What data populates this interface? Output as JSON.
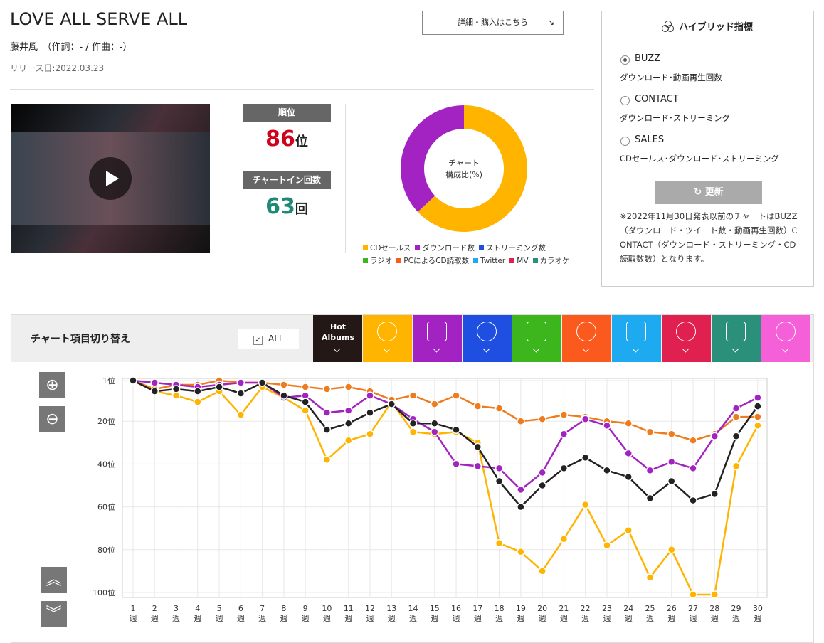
{
  "header": {
    "title": "LOVE ALL SERVE ALL",
    "artist": "藤井風　（作詞：- / 作曲：-）",
    "release": "リリース日:2022.03.23"
  },
  "detail_button": "詳細・購入はこちら",
  "rank": {
    "label": "順位",
    "value": "86",
    "unit": "位"
  },
  "chart_in": {
    "label": "チャートイン回数",
    "value": "63",
    "unit": "回"
  },
  "hybrid": {
    "title": "ハイブリッド指標",
    "selected": 0,
    "options": [
      {
        "name": "BUZZ",
        "desc": "ダウンロード･動画再生回数"
      },
      {
        "name": "CONTACT",
        "desc": "ダウンロード･ストリーミング"
      },
      {
        "name": "SALES",
        "desc": "CDセールス･ダウンロード･ストリーミング"
      }
    ],
    "update": "更新",
    "note": "※2022年11月30日発表以前のチャートはBUZZ（ダウンロード・ツイート数・動画再生回数）CONTACT（ダウンロード・ストリーミング・CD読取数数）となります。"
  },
  "switcher": {
    "title": "チャート項目切り替え",
    "all": "ALL",
    "tabs": [
      {
        "label": "Hot Albums",
        "color": "#231815"
      },
      {
        "color": "#ffb400"
      },
      {
        "color": "#a322c2"
      },
      {
        "color": "#1f4fe0"
      },
      {
        "color": "#3db51d"
      },
      {
        "color": "#fa5a1e"
      },
      {
        "color": "#1eaaf0"
      },
      {
        "color": "#e0204f"
      },
      {
        "color": "#2a9079"
      },
      {
        "color": "#f560d8"
      }
    ]
  },
  "chart_data": [
    {
      "type": "pie",
      "center_label": [
        "チャート",
        "構成比(%)"
      ],
      "categories": [
        "CDセールス",
        "ダウンロード数",
        "ストリーミング数",
        "ラジオ",
        "PCによるCD読取数",
        "Twitter",
        "MV",
        "カラオケ"
      ],
      "values": [
        63,
        37,
        0,
        0,
        0,
        0,
        0,
        0
      ],
      "colors": [
        "#ffb400",
        "#a322c2",
        "#1f4fe0",
        "#3db51d",
        "#fa5a1e",
        "#1eaaf0",
        "#e0204f",
        "#2a9079"
      ]
    },
    {
      "type": "line",
      "y_inverted": true,
      "grid": true,
      "categories": [
        "1週",
        "2週",
        "3週",
        "4週",
        "5週",
        "6週",
        "7週",
        "8週",
        "9週",
        "10週",
        "11週",
        "12週",
        "13週",
        "14週",
        "15週",
        "16週",
        "17週",
        "18週",
        "19週",
        "20週",
        "21週",
        "22週",
        "23週",
        "24週",
        "25週",
        "26週",
        "27週",
        "28週",
        "29週",
        "30週"
      ],
      "ylim": [
        0,
        101
      ],
      "yticks": [
        {
          "value": 1,
          "label": "1位"
        },
        {
          "value": 20,
          "label": "20位"
        },
        {
          "value": 40,
          "label": "40位"
        },
        {
          "value": 60,
          "label": "60位"
        },
        {
          "value": 80,
          "label": "80位"
        },
        {
          "value": 100,
          "label": "100位"
        }
      ],
      "series": [
        {
          "color": "#ffb400",
          "values": [
            1,
            6,
            8,
            11,
            6,
            17,
            4,
            9,
            15,
            38,
            29,
            26,
            11,
            25,
            26,
            25,
            30,
            77,
            81,
            90,
            75,
            59,
            78,
            71,
            93,
            80,
            101,
            101,
            41,
            22
          ]
        },
        {
          "color": "#ee7b1d",
          "values": [
            1,
            5,
            3,
            3,
            1,
            2,
            2,
            3,
            4,
            5,
            4,
            6,
            10,
            8,
            12,
            8,
            13,
            14,
            20,
            19,
            17,
            18,
            20,
            21,
            25,
            26,
            29,
            26,
            18,
            18
          ]
        },
        {
          "color": "#a322c2",
          "values": [
            1,
            2,
            3,
            4,
            3,
            2,
            2,
            9,
            8,
            16,
            15,
            8,
            12,
            19,
            25,
            40,
            41,
            42,
            52,
            44,
            26,
            19,
            22,
            35,
            43,
            39,
            42,
            27,
            14,
            9
          ]
        },
        {
          "color": "#222222",
          "values": [
            1,
            6,
            5,
            6,
            4,
            7,
            2,
            8,
            11,
            24,
            21,
            16,
            12,
            21,
            21,
            24,
            32,
            48,
            60,
            50,
            42,
            37,
            43,
            46,
            56,
            48,
            57,
            54,
            27,
            13
          ]
        }
      ]
    }
  ]
}
